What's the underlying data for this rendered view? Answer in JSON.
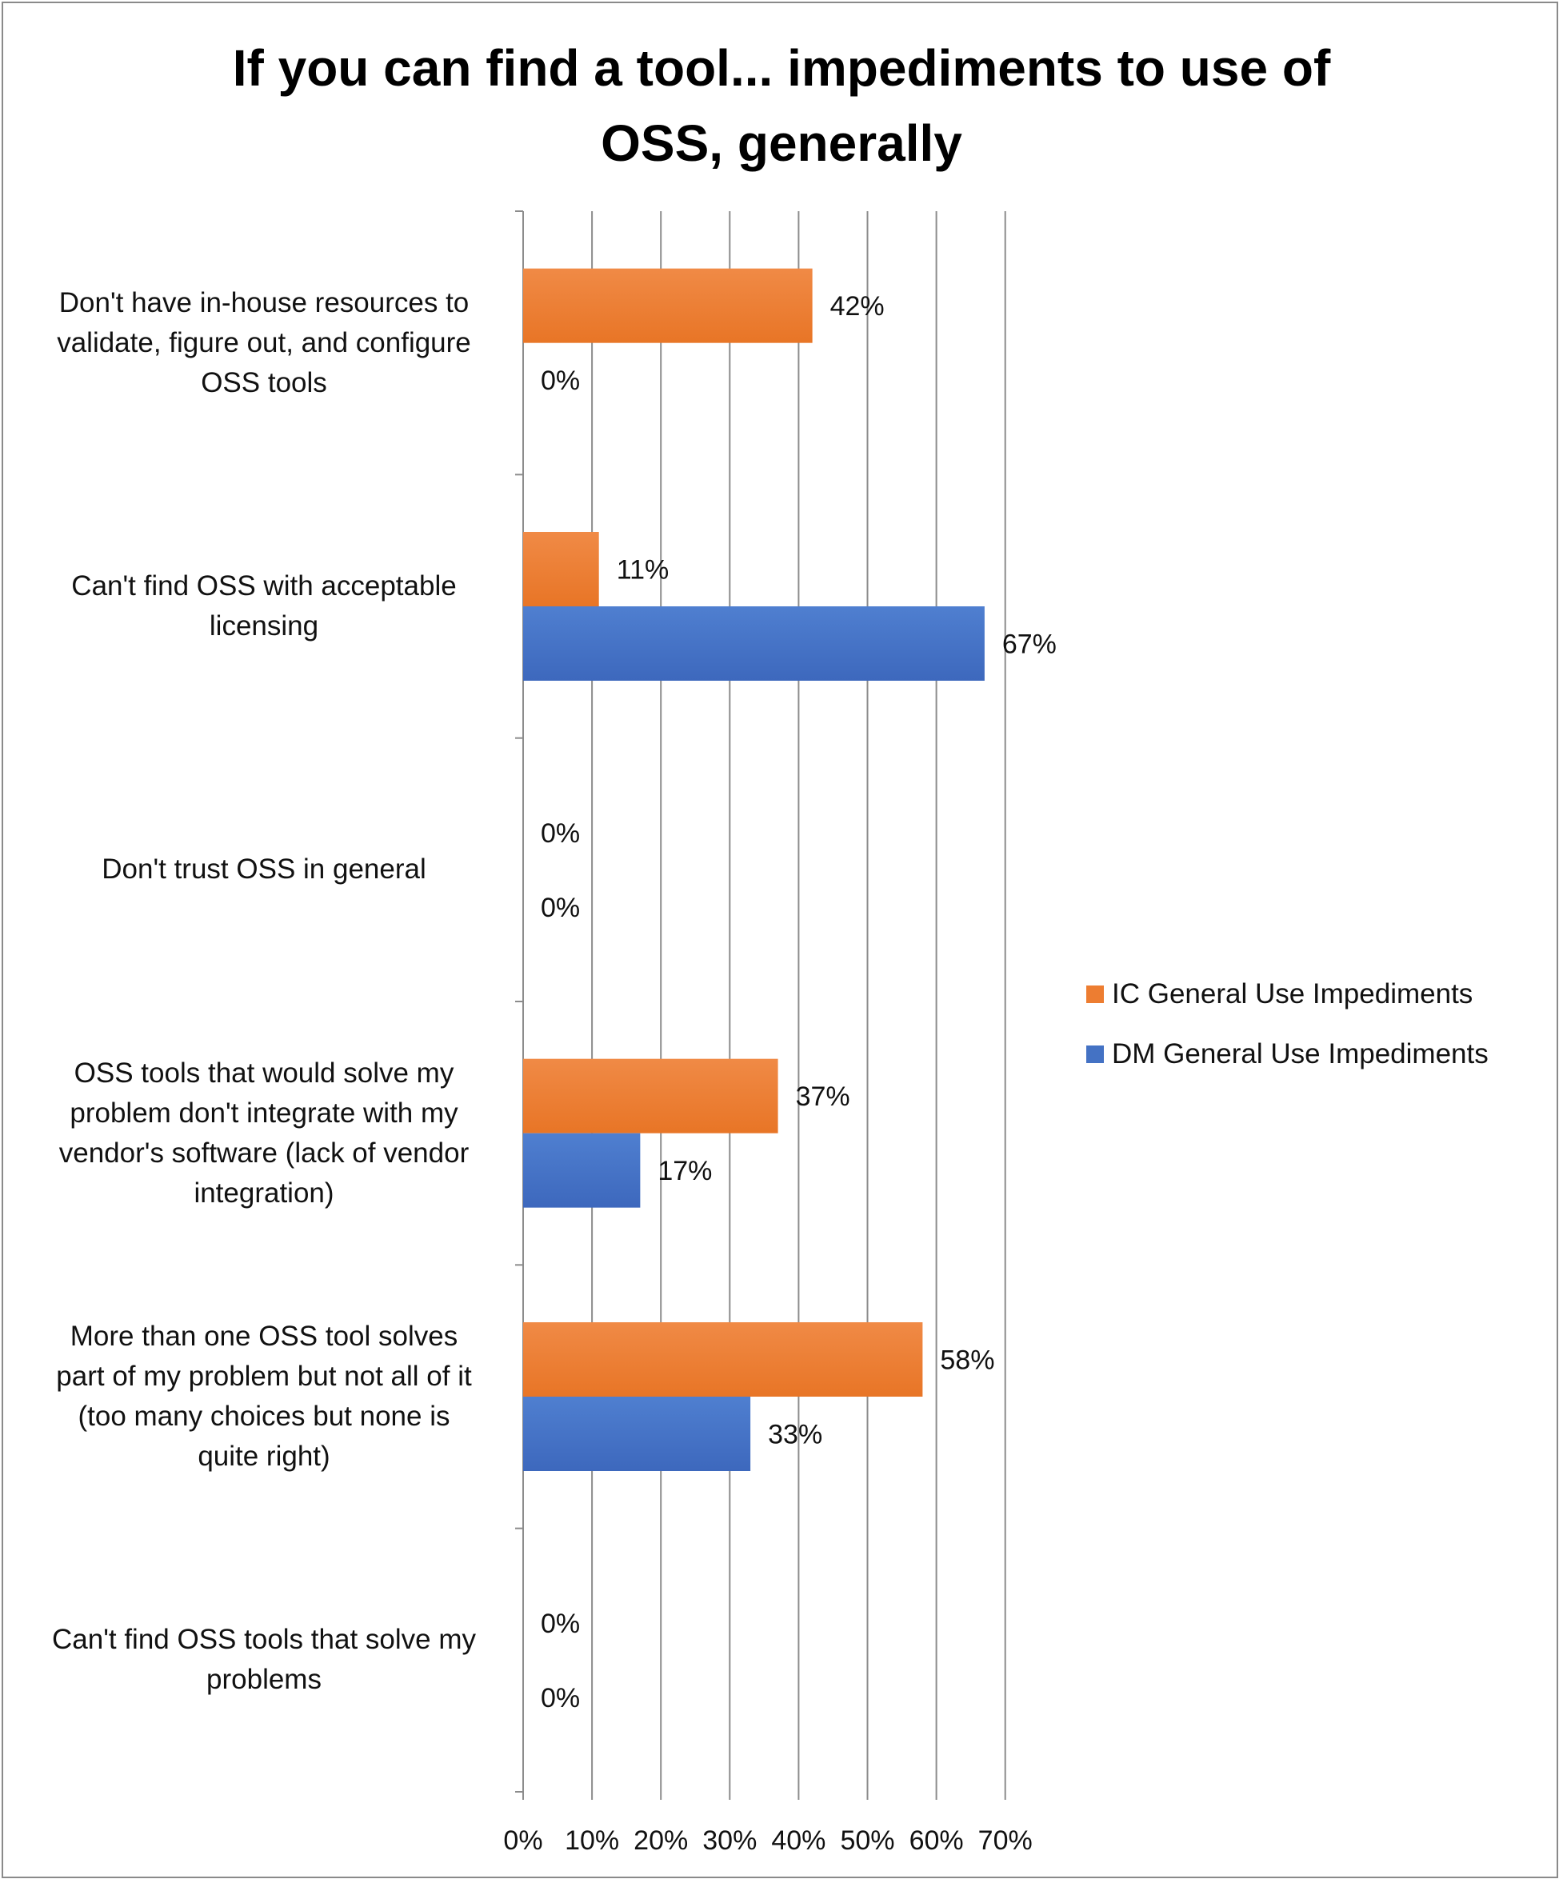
{
  "chart_data": {
    "type": "bar",
    "orientation": "horizontal",
    "title_lines": [
      "If you can find a tool... impediments to use of",
      "OSS, generally"
    ],
    "categories": [
      [
        "Don't have in-house resources to",
        "validate, figure out, and configure",
        "OSS tools"
      ],
      [
        "Can't find OSS with acceptable",
        "licensing"
      ],
      [
        "Don't trust OSS in general"
      ],
      [
        "OSS tools that would solve my",
        "problem don't integrate with my",
        "vendor's software (lack of vendor",
        "integration)"
      ],
      [
        "More than one OSS tool solves",
        "part of my problem but not all of it",
        "(too many choices but none is",
        "quite right)"
      ],
      [
        "Can't find OSS tools that solve my",
        "problems"
      ]
    ],
    "series": [
      {
        "name": "IC General Use Impediments",
        "color": "#ED7D31",
        "values": [
          42,
          11,
          0,
          37,
          58,
          0
        ],
        "labels": [
          "42%",
          "11%",
          "0%",
          "37%",
          "58%",
          "0%"
        ]
      },
      {
        "name": "DM General Use Impediments",
        "color": "#4472C4",
        "values": [
          0,
          67,
          0,
          17,
          33,
          0
        ],
        "labels": [
          "0%",
          "67%",
          "0%",
          "17%",
          "33%",
          "0%"
        ]
      }
    ],
    "xlim": [
      0,
      70
    ],
    "xticks": [
      "0%",
      "10%",
      "20%",
      "30%",
      "40%",
      "50%",
      "60%",
      "70%"
    ],
    "grid": true,
    "legend_position": "right"
  }
}
